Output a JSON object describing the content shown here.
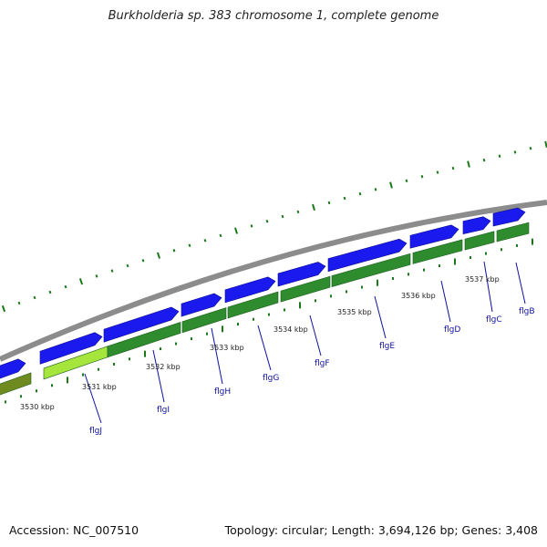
{
  "title": "Burkholderia sp. 383 chromosome 1, complete genome",
  "footer": {
    "accession": "Accession: NC_007510",
    "topology": "Topology: circular; Length: 3,694,126 bp; Genes: 3,408"
  },
  "colors": {
    "backbone": "#8c8c8c",
    "forward_gene": "#1a1aee",
    "cds_track": "#2e8b2e",
    "cds_highlight": "#a6e63c",
    "cds_partial": "#6f8a1f",
    "tick": "#1a7a1a",
    "gene_label": "#1010a0",
    "scale_label": "#222222"
  },
  "scale_labels": [
    "3530 kbp",
    "3531 kbp",
    "3532 kbp",
    "3533 kbp",
    "3534 kbp",
    "3535 kbp",
    "3536 kbp",
    "3537 kbp"
  ],
  "gene_labels": [
    "flgJ",
    "flgI",
    "flgH",
    "flgG",
    "flgF",
    "flgE",
    "flgD",
    "flgC",
    "flgB"
  ]
}
